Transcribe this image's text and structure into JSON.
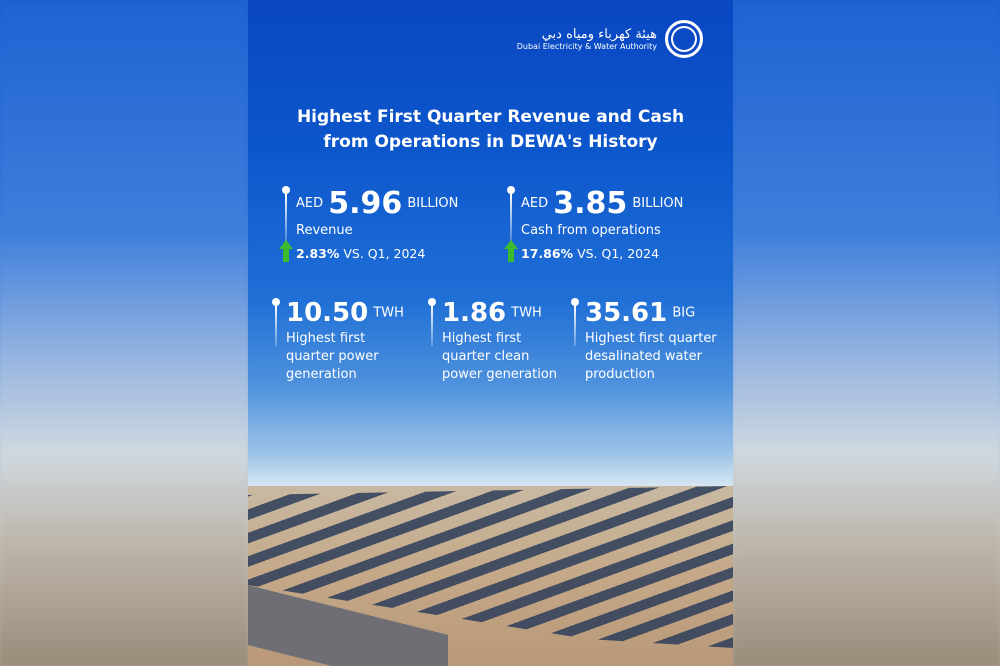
{
  "logo": {
    "arabic": "هيئة كهرباء ومياه دبي",
    "english": "Dubai Electricity & Water Authority"
  },
  "title": [
    "Highest First Quarter Revenue and Cash",
    "from Operations in DEWA's History"
  ],
  "financial": [
    {
      "prefix": "AED",
      "value": "5.96",
      "unit": "BILLION",
      "label": "Revenue",
      "change": "2.83%",
      "change_text": "VS. Q1, 2024",
      "trend": "up"
    },
    {
      "prefix": "AED",
      "value": "3.85",
      "unit": "BILLION",
      "label": "Cash from operations",
      "change": "17.86%",
      "change_text": "VS. Q1, 2024",
      "trend": "up"
    }
  ],
  "operational": [
    {
      "value": "10.50",
      "unit": "TWH",
      "lines": [
        "Highest first",
        "quarter power",
        "generation"
      ]
    },
    {
      "value": "1.86",
      "unit": "TWH",
      "lines": [
        "Highest first",
        "quarter clean",
        "power generation"
      ]
    },
    {
      "value": "35.61",
      "unit": "BIG",
      "lines": [
        "Highest first quarter",
        "desalinated water",
        "production"
      ]
    }
  ],
  "colors": {
    "brand_blue": "#0a47c2",
    "arrow_green": "#3dbb2e"
  }
}
